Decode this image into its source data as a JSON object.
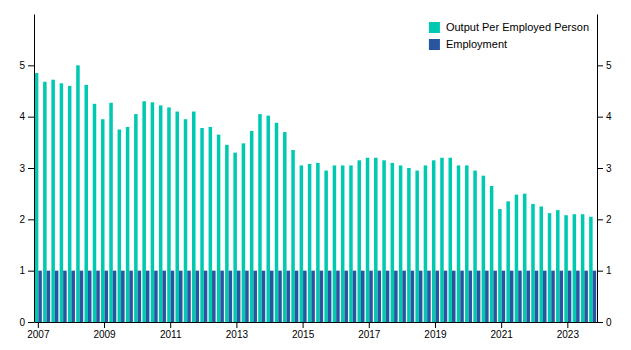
{
  "chart_data": {
    "type": "bar",
    "categories": [
      "2007",
      null,
      null,
      null,
      null,
      null,
      null,
      null,
      "2009",
      null,
      null,
      null,
      null,
      null,
      null,
      null,
      "2011",
      null,
      null,
      null,
      null,
      null,
      null,
      null,
      "2013",
      null,
      null,
      null,
      null,
      null,
      null,
      null,
      "2015",
      null,
      null,
      null,
      null,
      null,
      null,
      null,
      "2017",
      null,
      null,
      null,
      null,
      null,
      null,
      null,
      "2019",
      null,
      null,
      null,
      null,
      null,
      null,
      null,
      "2021",
      null,
      null,
      null,
      null,
      null,
      null,
      null,
      "2023",
      null,
      null,
      null
    ],
    "series": [
      {
        "name": "Output Per Employed Person",
        "color": "#00C9B1",
        "values": [
          4.85,
          4.68,
          4.72,
          4.65,
          4.6,
          5.0,
          4.62,
          4.25,
          3.95,
          4.27,
          3.75,
          3.8,
          4.05,
          4.3,
          4.28,
          4.22,
          4.18,
          4.1,
          3.95,
          4.1,
          3.78,
          3.8,
          3.65,
          3.45,
          3.3,
          3.48,
          3.72,
          4.05,
          4.02,
          3.88,
          3.7,
          3.35,
          3.05,
          3.08,
          3.1,
          2.95,
          3.05,
          3.05,
          3.05,
          3.15,
          3.2,
          3.2,
          3.15,
          3.1,
          3.05,
          3.0,
          2.95,
          3.05,
          3.15,
          3.2,
          3.2,
          3.05,
          3.05,
          2.95,
          2.85,
          2.65,
          2.2,
          2.35,
          2.48,
          2.5,
          2.3,
          2.25,
          2.12,
          2.18,
          2.08,
          2.1,
          2.1,
          2.05
        ]
      },
      {
        "name": "Employment",
        "color": "#2855A0",
        "values": [
          1.0,
          1.0,
          1.0,
          1.0,
          1.0,
          1.0,
          1.0,
          1.0,
          1.0,
          1.0,
          1.0,
          1.0,
          1.0,
          1.0,
          1.0,
          1.0,
          1.0,
          1.0,
          1.0,
          1.0,
          1.0,
          1.0,
          1.0,
          1.0,
          1.0,
          1.0,
          1.0,
          1.0,
          1.0,
          1.0,
          1.0,
          1.0,
          1.0,
          1.0,
          1.0,
          1.0,
          1.0,
          1.0,
          1.0,
          1.0,
          1.0,
          1.0,
          1.0,
          1.0,
          1.0,
          1.0,
          1.0,
          1.0,
          1.0,
          1.0,
          1.0,
          1.0,
          1.0,
          1.0,
          1.0,
          1.0,
          1.0,
          1.0,
          1.0,
          1.0,
          1.0,
          1.0,
          1.0,
          1.0,
          1.0,
          1.0,
          1.0,
          1.0
        ]
      }
    ],
    "ylim": [
      0,
      6
    ],
    "yticks": [
      0,
      1,
      2,
      3,
      4,
      5
    ],
    "y2lim": [
      0,
      6
    ],
    "y2ticks": [
      0,
      1,
      2,
      3,
      4,
      5
    ],
    "legend": "upper right"
  }
}
